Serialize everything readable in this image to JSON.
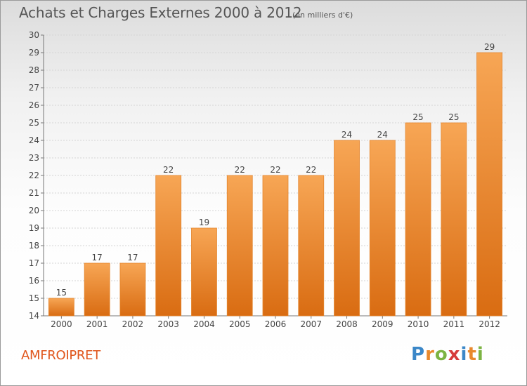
{
  "header": {
    "title": "Achats et Charges Externes 2000 à 2012",
    "unit": "(en milliers d'€)"
  },
  "footer": {
    "commune": "AMFROIPRET",
    "logo_text": "Proxiti"
  },
  "colors": {
    "bar_light": "#f7a655",
    "bar_dark": "#d96c12",
    "commune_text": "#e0551b"
  },
  "chart_data": {
    "type": "bar",
    "title": "Achats et Charges Externes 2000 à 2012",
    "subtitle": "(en milliers d'€)",
    "xlabel": "",
    "ylabel": "",
    "categories": [
      "2000",
      "2001",
      "2002",
      "2003",
      "2004",
      "2005",
      "2006",
      "2007",
      "2008",
      "2009",
      "2010",
      "2011",
      "2012"
    ],
    "values": [
      15,
      17,
      17,
      22,
      19,
      22,
      22,
      22,
      24,
      24,
      25,
      25,
      29
    ],
    "data_labels": [
      "15",
      "17",
      "17",
      "22",
      "19",
      "22",
      "22",
      "22",
      "24",
      "24",
      "25",
      "25",
      "29"
    ],
    "ylim": [
      14,
      30
    ],
    "yticks": [
      14,
      15,
      16,
      17,
      18,
      19,
      20,
      21,
      22,
      23,
      24,
      25,
      26,
      27,
      28,
      29,
      30
    ],
    "grid": true,
    "legend": "none"
  }
}
